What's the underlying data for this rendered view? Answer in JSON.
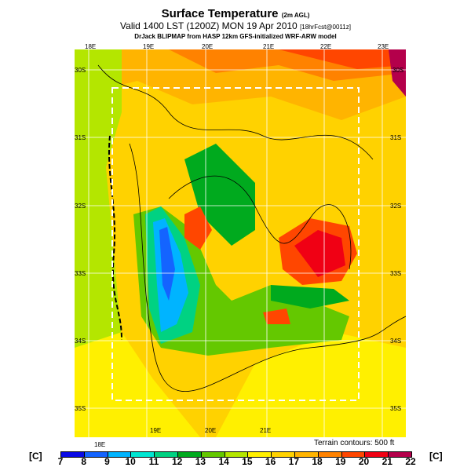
{
  "title": {
    "main": "Surface Temperature",
    "suffix": "(2m AGL)"
  },
  "subtitle": {
    "main": "Valid 1400 LST (1200Z) MON 19 Apr 2010",
    "suffix": "[18hrFcst@0011z]"
  },
  "credit": "DrJack BLIPMAP from HASP 12km GFS-initialized WRF-ARW model",
  "lon_top": [
    "18E",
    "19E",
    "20E",
    "21E",
    "22E",
    "23E"
  ],
  "lon_bottom": [
    "18E",
    "19E",
    "20E",
    "21E"
  ],
  "lat_left": [
    "30S",
    "31S",
    "32S",
    "33S",
    "34S",
    "35S"
  ],
  "lat_right": [
    "30S",
    "31S",
    "32S",
    "33S",
    "34S",
    "35S"
  ],
  "terrain_note": "Terrain contours: 500 ft",
  "colorbar": {
    "unit": "[C]",
    "ticks": [
      "7",
      "8",
      "9",
      "10",
      "11",
      "12",
      "13",
      "14",
      "15",
      "16",
      "17",
      "18",
      "19",
      "20",
      "21",
      "22"
    ],
    "colors": [
      "#0a0ae6",
      "#1464ff",
      "#00b4ff",
      "#00e6d2",
      "#00d282",
      "#00aa1e",
      "#64c800",
      "#b4e600",
      "#fff000",
      "#ffd200",
      "#ffb400",
      "#ff8200",
      "#ff4600",
      "#f00014",
      "#b4004b"
    ]
  }
}
